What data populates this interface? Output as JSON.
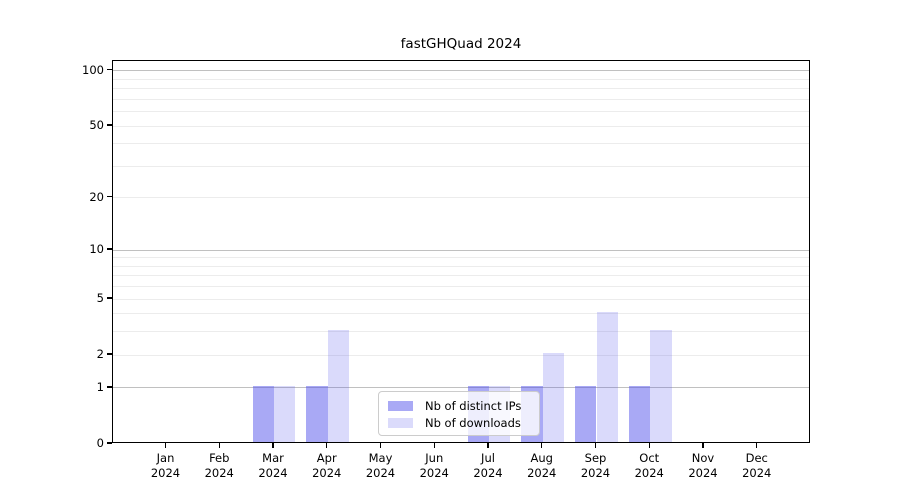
{
  "chart_data": {
    "type": "bar",
    "title": "fastGHQuad 2024",
    "categories": [
      {
        "month": "Jan",
        "year": "2024"
      },
      {
        "month": "Feb",
        "year": "2024"
      },
      {
        "month": "Mar",
        "year": "2024"
      },
      {
        "month": "Apr",
        "year": "2024"
      },
      {
        "month": "May",
        "year": "2024"
      },
      {
        "month": "Jun",
        "year": "2024"
      },
      {
        "month": "Jul",
        "year": "2024"
      },
      {
        "month": "Aug",
        "year": "2024"
      },
      {
        "month": "Sep",
        "year": "2024"
      },
      {
        "month": "Oct",
        "year": "2024"
      },
      {
        "month": "Nov",
        "year": "2024"
      },
      {
        "month": "Dec",
        "year": "2024"
      }
    ],
    "series": [
      {
        "name": "Nb of distinct IPs",
        "color": "#a9a9f5",
        "fill": "rgba(80,80,235,0.49)",
        "values": [
          0,
          0,
          1,
          1,
          0,
          0,
          1,
          1,
          1,
          1,
          0,
          0
        ]
      },
      {
        "name": "Nb of downloads",
        "color": "#dbdbfb",
        "fill": "rgba(80,80,235,0.21)",
        "values": [
          0,
          0,
          1,
          3,
          0,
          0,
          1,
          2,
          4,
          3,
          0,
          0
        ]
      }
    ],
    "xlabel": "",
    "ylabel": "",
    "y_ticks": [
      100,
      50,
      20,
      10,
      5,
      2,
      1,
      0
    ],
    "y_major_gridlines": [
      1,
      10,
      100
    ],
    "y_minor_gridlines": [
      2,
      3,
      4,
      5,
      6,
      7,
      8,
      9,
      20,
      30,
      40,
      50,
      60,
      70,
      80,
      90
    ],
    "y_scale": "log10(1+x)",
    "ylim": [
      0,
      115
    ],
    "grid": "horizontal",
    "legend_position": "lower center",
    "colors": {
      "major_grid": "#c0c0c0",
      "minor_grid": "#ececec",
      "spine": "#000000",
      "legend_border": "#cccccc"
    }
  }
}
